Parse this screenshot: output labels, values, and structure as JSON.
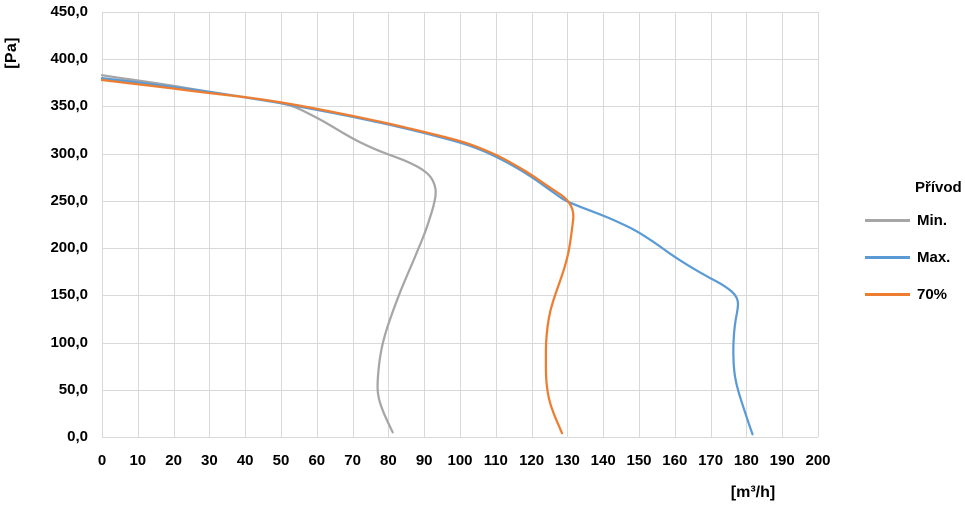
{
  "chart_data": {
    "type": "line",
    "title": "",
    "xlabel": "[m³/h]",
    "ylabel": "[Pa]",
    "grid": true,
    "x_axis": {
      "min": 0,
      "max": 200,
      "tick_step": 10,
      "tick_labels": [
        "0",
        "10",
        "20",
        "30",
        "40",
        "50",
        "60",
        "70",
        "80",
        "90",
        "100",
        "110",
        "120",
        "130",
        "140",
        "150",
        "160",
        "170",
        "180",
        "190",
        "200"
      ]
    },
    "y_axis": {
      "min": 0,
      "max": 450,
      "tick_step": 50,
      "tick_labels": [
        "0,0",
        "50,0",
        "100,0",
        "150,0",
        "200,0",
        "250,0",
        "300,0",
        "350,0",
        "400,0",
        "450,0"
      ]
    },
    "colors": {
      "grid": "#d9d9d9",
      "text": "#000000",
      "background": "#ffffff"
    },
    "legend": {
      "title": "Přívod",
      "position": "right"
    },
    "series": [
      {
        "name": "Min.",
        "color": "#a6a6a6",
        "points": [
          [
            0,
            383
          ],
          [
            10,
            377.5
          ],
          [
            20,
            372
          ],
          [
            30,
            365.5
          ],
          [
            40,
            359.8
          ],
          [
            46,
            356.5
          ],
          [
            50,
            353.8
          ],
          [
            54,
            349.5
          ],
          [
            58,
            342
          ],
          [
            62,
            334
          ],
          [
            66,
            325
          ],
          [
            70,
            316
          ],
          [
            74,
            308.5
          ],
          [
            78,
            302
          ],
          [
            82,
            296.5
          ],
          [
            86,
            290.5
          ],
          [
            89.5,
            283.5
          ],
          [
            91.8,
            276
          ],
          [
            93,
            267
          ],
          [
            93.3,
            258
          ],
          [
            92.8,
            247
          ],
          [
            91.6,
            232
          ],
          [
            90.2,
            216
          ],
          [
            88.2,
            198
          ],
          [
            86,
            178
          ],
          [
            83.5,
            156
          ],
          [
            81.5,
            136
          ],
          [
            79.8,
            118
          ],
          [
            78.5,
            101
          ],
          [
            77.6,
            84
          ],
          [
            77.1,
            66
          ],
          [
            76.9,
            52
          ],
          [
            77.3,
            40
          ],
          [
            78.4,
            28
          ],
          [
            79.8,
            16
          ],
          [
            81.2,
            5
          ]
        ]
      },
      {
        "name": "Max.",
        "color": "#5b9bd5",
        "points": [
          [
            0,
            380
          ],
          [
            10,
            375.5
          ],
          [
            20,
            370.5
          ],
          [
            30,
            365.5
          ],
          [
            40,
            359.5
          ],
          [
            50,
            353.5
          ],
          [
            60,
            346.5
          ],
          [
            70,
            339
          ],
          [
            80,
            331
          ],
          [
            90,
            322
          ],
          [
            100,
            312
          ],
          [
            105,
            305.5
          ],
          [
            110,
            297
          ],
          [
            115,
            287
          ],
          [
            120,
            275.5
          ],
          [
            124,
            264.5
          ],
          [
            127,
            256.5
          ],
          [
            129.5,
            250
          ],
          [
            134,
            243
          ],
          [
            139,
            236
          ],
          [
            144,
            228
          ],
          [
            149,
            219
          ],
          [
            154,
            207
          ],
          [
            159,
            193
          ],
          [
            164,
            181
          ],
          [
            169,
            170
          ],
          [
            172.5,
            163
          ],
          [
            175,
            157
          ],
          [
            176.8,
            151
          ],
          [
            177.7,
            144
          ],
          [
            177.6,
            136
          ],
          [
            177,
            125
          ],
          [
            176.5,
            110
          ],
          [
            176.3,
            94
          ],
          [
            176.4,
            78
          ],
          [
            176.8,
            63
          ],
          [
            177.9,
            46
          ],
          [
            179.3,
            30
          ],
          [
            180.6,
            15
          ],
          [
            181.7,
            3
          ]
        ]
      },
      {
        "name": "70%",
        "color": "#ed7d31",
        "points": [
          [
            0,
            378
          ],
          [
            10,
            373.5
          ],
          [
            20,
            369
          ],
          [
            30,
            364
          ],
          [
            40,
            360
          ],
          [
            50,
            354.5
          ],
          [
            60,
            347.5
          ],
          [
            70,
            340
          ],
          [
            80,
            332
          ],
          [
            90,
            323
          ],
          [
            100,
            313.5
          ],
          [
            105,
            307
          ],
          [
            110,
            299
          ],
          [
            115,
            289
          ],
          [
            120,
            277.5
          ],
          [
            124,
            267
          ],
          [
            127,
            259.5
          ],
          [
            129.5,
            253
          ],
          [
            131,
            245.5
          ],
          [
            131.8,
            236
          ],
          [
            131.4,
            223
          ],
          [
            130.8,
            206
          ],
          [
            129.9,
            188
          ],
          [
            128.4,
            170
          ],
          [
            126.7,
            152
          ],
          [
            125.2,
            134
          ],
          [
            124.4,
            117
          ],
          [
            124,
            100
          ],
          [
            124,
            82
          ],
          [
            124,
            64
          ],
          [
            124.4,
            48
          ],
          [
            125.3,
            33
          ],
          [
            126.9,
            18
          ],
          [
            128.5,
            4
          ]
        ]
      }
    ]
  }
}
